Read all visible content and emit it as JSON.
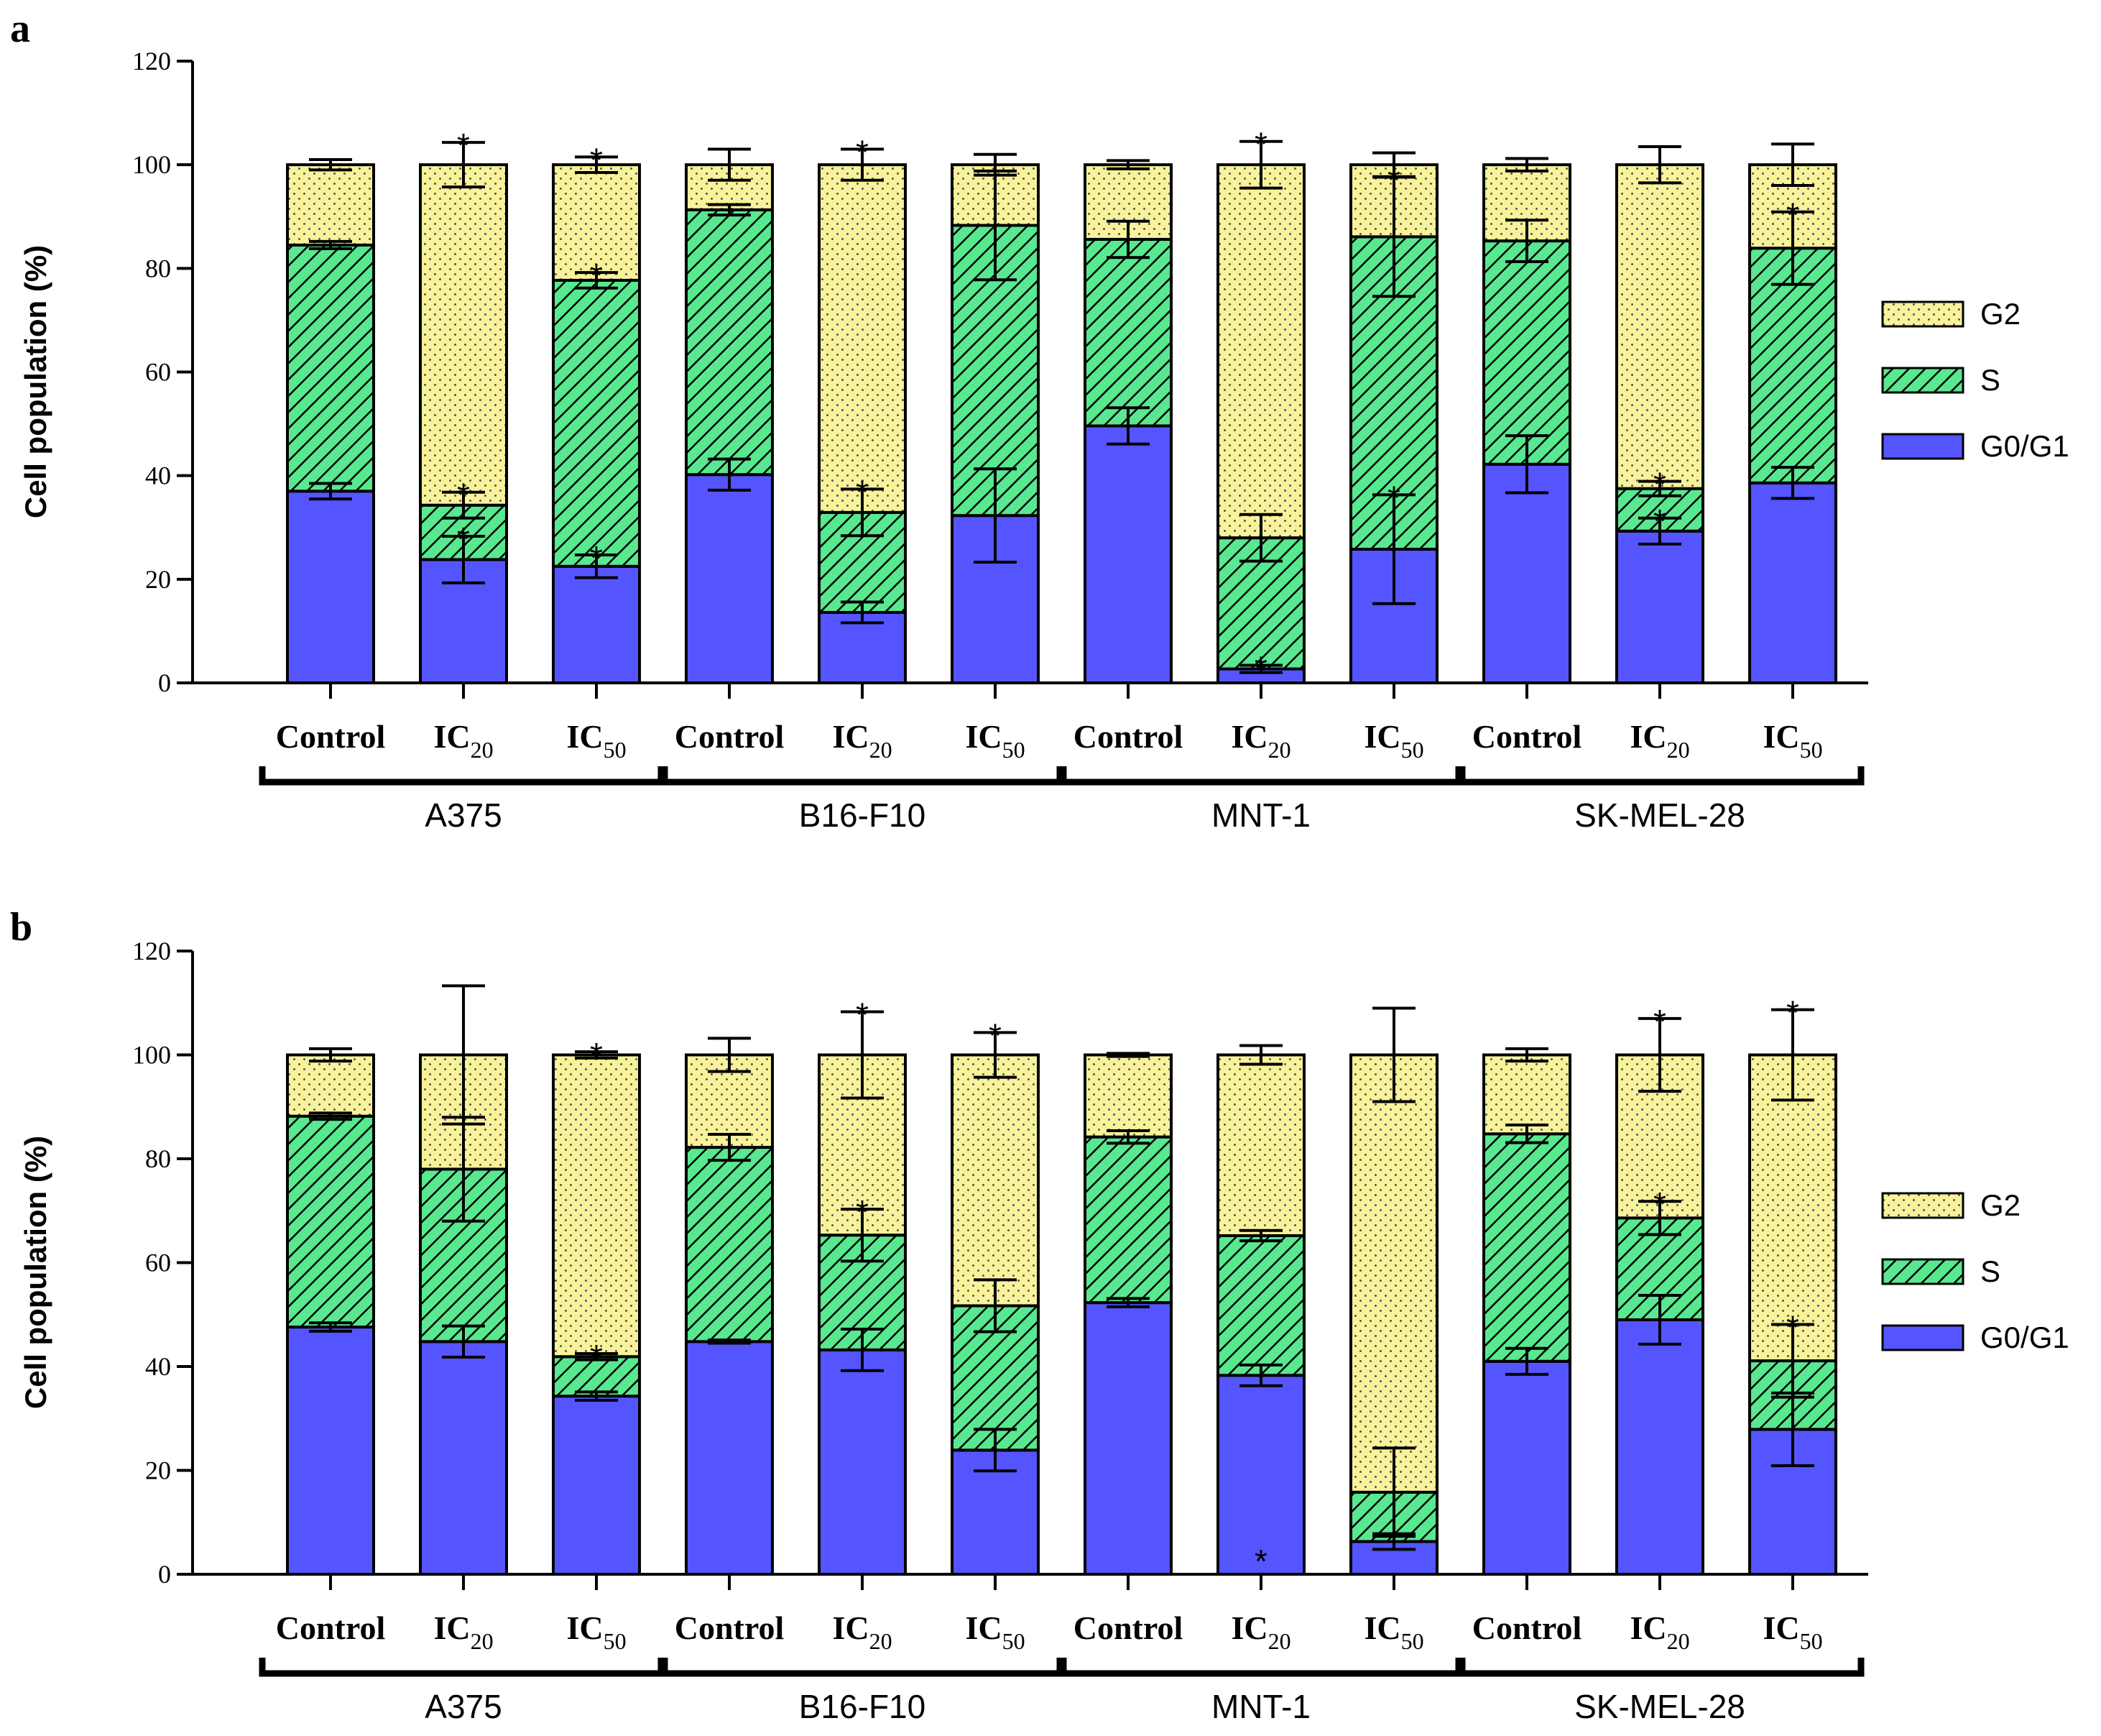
{
  "colors": {
    "G2": "#f8f39a",
    "S": "#58e890",
    "G0_G1": "#5555ff",
    "axis": "#000000"
  },
  "legend": [
    {
      "key": "G2",
      "label": "G2",
      "pattern": "dots"
    },
    {
      "key": "S",
      "label": "S",
      "pattern": "hatch"
    },
    {
      "key": "G0_G1",
      "label": "G0/G1",
      "pattern": "solid"
    }
  ],
  "chart_data": [
    {
      "panel_label": "a",
      "type": "bar",
      "stacked": true,
      "ylabel": "Cell population (%)",
      "ylim": [
        0,
        120
      ],
      "yticks": [
        "0",
        "20",
        "40",
        "60",
        "80",
        "100",
        "120"
      ],
      "categories": [
        {
          "main": "Control",
          "sub": ""
        },
        {
          "main": "IC",
          "sub": "20"
        },
        {
          "main": "IC",
          "sub": "50"
        },
        {
          "main": "Control",
          "sub": ""
        },
        {
          "main": "IC",
          "sub": "20"
        },
        {
          "main": "IC",
          "sub": "50"
        },
        {
          "main": "Control",
          "sub": ""
        },
        {
          "main": "IC",
          "sub": "20"
        },
        {
          "main": "IC",
          "sub": "50"
        },
        {
          "main": "Control",
          "sub": ""
        },
        {
          "main": "IC",
          "sub": "20"
        },
        {
          "main": "IC",
          "sub": "50"
        }
      ],
      "groups": [
        "A375",
        "B16-F10",
        "MNT-1",
        "SK-MEL-28"
      ],
      "series": [
        {
          "name": "G0/G1",
          "key": "G0_G1",
          "values": [
            37,
            23.8,
            22.5,
            40.2,
            13.6,
            32.3,
            49.6,
            2.7,
            25.8,
            42.2,
            29.3,
            38.6
          ],
          "errors": [
            1.5,
            4.5,
            2.2,
            3,
            2,
            9,
            3.5,
            0.7,
            10.5,
            5.5,
            2.5,
            3
          ]
        },
        {
          "name": "S",
          "key": "S",
          "values": [
            47.5,
            10.5,
            55.2,
            51.1,
            19.3,
            56,
            36,
            25.3,
            60.3,
            43.1,
            8.2,
            45.3
          ],
          "errors": [
            0.7,
            2.5,
            1.5,
            1,
            4.5,
            10.5,
            3.5,
            4.5,
            11.5,
            4,
            1.4,
            7
          ]
        },
        {
          "name": "G2",
          "key": "G2",
          "values": [
            15.5,
            65.7,
            22.3,
            8.7,
            67.1,
            11.7,
            14.4,
            72,
            13.9,
            14.7,
            62.5,
            16.1
          ],
          "errors": [
            1,
            4.3,
            1.5,
            3,
            3,
            2,
            0.8,
            4.5,
            2.3,
            1.2,
            3.5,
            4
          ]
        }
      ],
      "significance": [
        {
          "bar": 1,
          "level": "G2"
        },
        {
          "bar": 1,
          "level": "S"
        },
        {
          "bar": 1,
          "level": "G0_G1"
        },
        {
          "bar": 2,
          "level": "G2"
        },
        {
          "bar": 2,
          "level": "S"
        },
        {
          "bar": 2,
          "level": "G0_G1"
        },
        {
          "bar": 4,
          "level": "G2"
        },
        {
          "bar": 4,
          "level": "S"
        },
        {
          "bar": 7,
          "level": "G2"
        },
        {
          "bar": 7,
          "level": "G0_G1"
        },
        {
          "bar": 8,
          "level": "S"
        },
        {
          "bar": 8,
          "level": "G0_G1"
        },
        {
          "bar": 10,
          "level": "S"
        },
        {
          "bar": 10,
          "level": "G0_G1"
        },
        {
          "bar": 11,
          "level": "S"
        }
      ],
      "star_symbol": "*"
    },
    {
      "panel_label": "b",
      "type": "bar",
      "stacked": true,
      "ylabel": "Cell population (%)",
      "ylim": [
        0,
        120
      ],
      "yticks": [
        "0",
        "20",
        "40",
        "60",
        "80",
        "100",
        "120"
      ],
      "categories": [
        {
          "main": "Control",
          "sub": ""
        },
        {
          "main": "IC",
          "sub": "20"
        },
        {
          "main": "IC",
          "sub": "50"
        },
        {
          "main": "Control",
          "sub": ""
        },
        {
          "main": "IC",
          "sub": "20"
        },
        {
          "main": "IC",
          "sub": "50"
        },
        {
          "main": "Control",
          "sub": ""
        },
        {
          "main": "IC",
          "sub": "20"
        },
        {
          "main": "IC",
          "sub": "50"
        },
        {
          "main": "Control",
          "sub": ""
        },
        {
          "main": "IC",
          "sub": "20"
        },
        {
          "main": "IC",
          "sub": "50"
        }
      ],
      "groups": [
        "A375",
        "B16-F10",
        "MNT-1",
        "SK-MEL-28"
      ],
      "series": [
        {
          "name": "G0/G1",
          "key": "G0_G1",
          "values": [
            47.6,
            44.8,
            34.3,
            44.8,
            43.2,
            23.9,
            52.3,
            38.3,
            6.3,
            41,
            49,
            27.9
          ],
          "errors": [
            0.8,
            3,
            0.8,
            0.3,
            4,
            4,
            0.8,
            2,
            1.5,
            2.5,
            4.7,
            7
          ]
        },
        {
          "name": "S",
          "key": "S",
          "values": [
            40.6,
            33.2,
            7.6,
            37.4,
            22.1,
            27.8,
            31.9,
            26.9,
            9.5,
            43.8,
            19.6,
            13.2
          ],
          "errors": [
            0.6,
            10,
            0.6,
            2.5,
            5,
            5,
            1.2,
            1,
            8.5,
            1.7,
            3.2,
            7
          ]
        },
        {
          "name": "G2",
          "key": "G2",
          "values": [
            11.8,
            22,
            58.1,
            17.8,
            34.7,
            48.3,
            15.8,
            34.8,
            84.2,
            15.2,
            31.4,
            58.9
          ],
          "errors": [
            1.2,
            13.3,
            0.6,
            3.2,
            8.3,
            4.3,
            0.3,
            1.8,
            9,
            1.2,
            7,
            8.7
          ]
        }
      ],
      "significance": [
        {
          "bar": 2,
          "level": "G2"
        },
        {
          "bar": 2,
          "level": "S"
        },
        {
          "bar": 4,
          "level": "G2"
        },
        {
          "bar": 4,
          "level": "S"
        },
        {
          "bar": 5,
          "level": "G2"
        },
        {
          "bar": 7,
          "level": "base"
        },
        {
          "bar": 10,
          "level": "G2"
        },
        {
          "bar": 10,
          "level": "S"
        },
        {
          "bar": 11,
          "level": "G2"
        },
        {
          "bar": 11,
          "level": "S"
        }
      ],
      "star_symbol": "*"
    }
  ]
}
